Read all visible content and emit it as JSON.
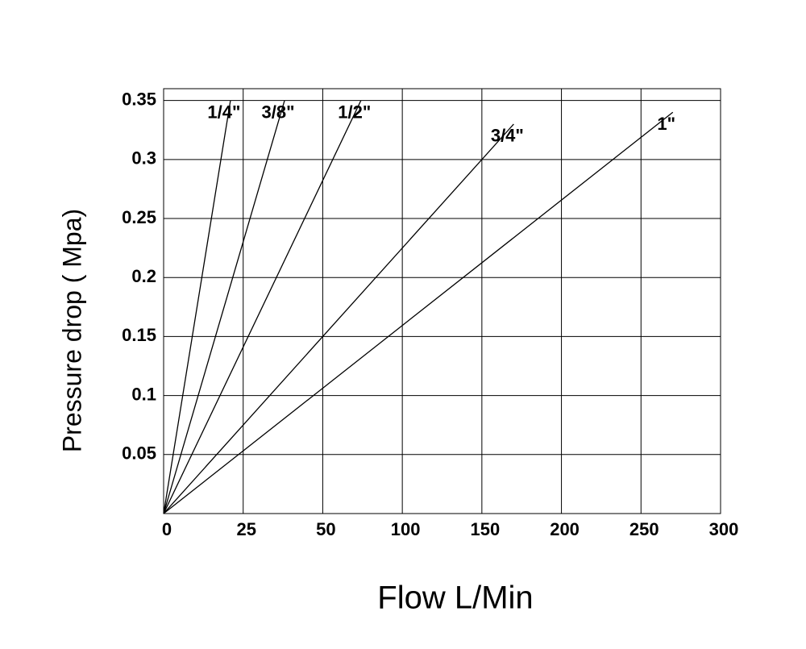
{
  "chart_data": {
    "type": "line",
    "x_label": "Flow L/Min",
    "y_label": "Pressure  drop ( Mpa)",
    "xlim": [
      0,
      300
    ],
    "xticks": [
      0,
      25,
      50,
      100,
      150,
      200,
      250,
      300
    ],
    "ylim": [
      0,
      0.36
    ],
    "yticks": [
      0.05,
      0.1,
      0.15,
      0.2,
      0.25,
      0.3,
      0.35
    ],
    "grid": true,
    "series": [
      {
        "name": "1/4\"",
        "color": "#000000",
        "x": [
          0,
          21
        ],
        "values": [
          0,
          0.35
        ]
      },
      {
        "name": "3/8\"",
        "color": "#000000",
        "x": [
          0,
          38
        ],
        "values": [
          0,
          0.35
        ]
      },
      {
        "name": "1/2\"",
        "color": "#000000",
        "x": [
          0,
          74
        ],
        "values": [
          0,
          0.35
        ]
      },
      {
        "name": "3/4\"",
        "color": "#000000",
        "x": [
          0,
          170
        ],
        "values": [
          0,
          0.33
        ]
      },
      {
        "name": "1\"",
        "color": "#000000",
        "x": [
          0,
          270
        ],
        "values": [
          0,
          0.34
        ]
      }
    ]
  }
}
